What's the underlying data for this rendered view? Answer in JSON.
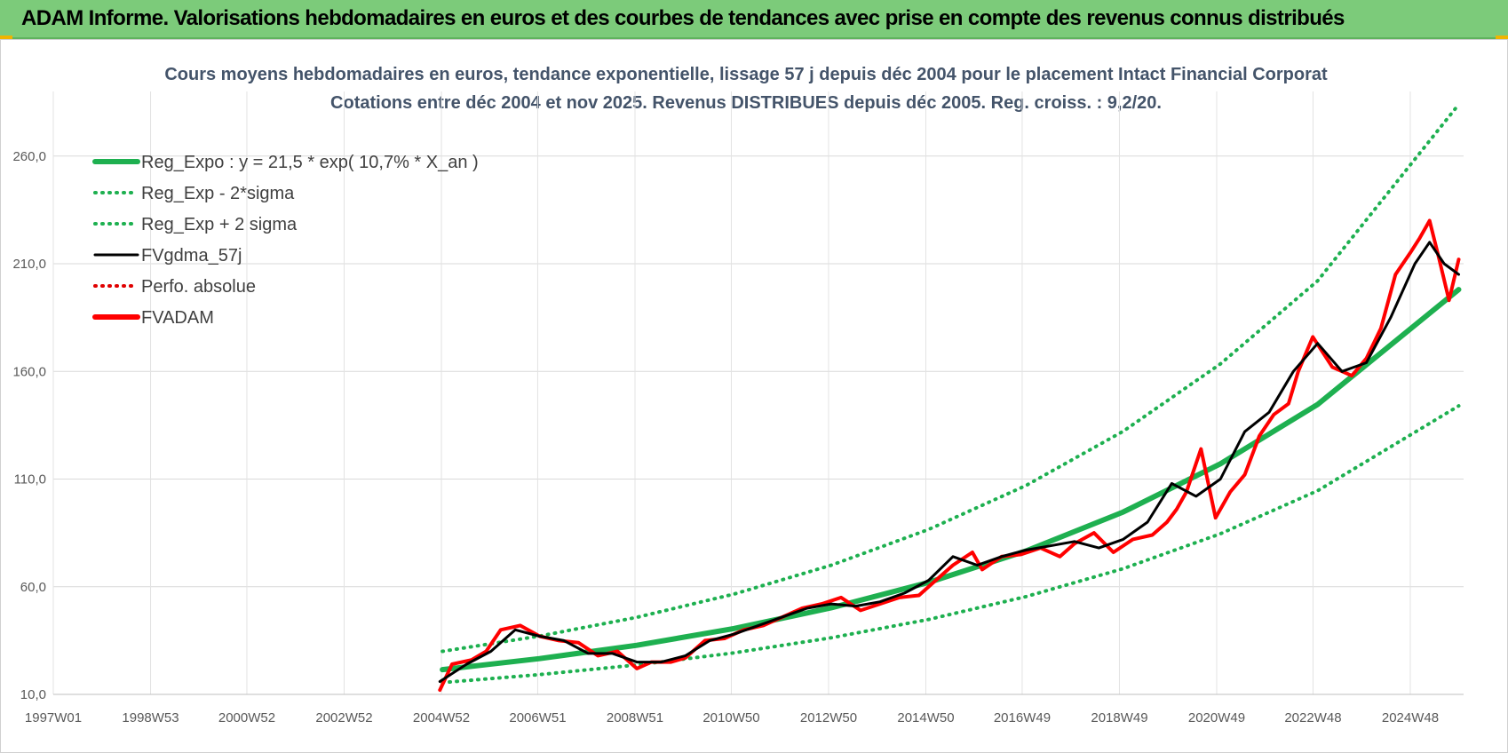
{
  "banner": {
    "title": "ADAM Informe. Valorisations hebdomadaires en euros et des courbes de tendances avec prise en compte des revenus connus distribués"
  },
  "colors": {
    "banner_bg": "#7ccb7a",
    "reg_green": "#1eb050",
    "sigma_green": "#1eb050",
    "smoothed": "#000000",
    "perfo": "#e00000",
    "fvadam": "#ff0000",
    "title_text": "#44546a"
  },
  "chart_data": {
    "type": "line",
    "title": "Cours moyens hebdomadaires en euros, tendance exponentielle, lissage 57 j depuis déc 2004 pour le placement Intact Financial Corporat",
    "subtitle": "Cotations entre déc 2004 et nov 2025. Revenus DISTRIBUES depuis déc 2005. Reg. croiss. : 9,2/20.",
    "x_tick_labels": [
      "1997W01",
      "1998W53",
      "2000W52",
      "2002W52",
      "2004W52",
      "2006W51",
      "2008W51",
      "2010W50",
      "2012W50",
      "2014W50",
      "2016W49",
      "2018W49",
      "2020W49",
      "2022W48",
      "2024W48"
    ],
    "y_tick_labels": [
      "10,0",
      "60,0",
      "110,0",
      "160,0",
      "210,0",
      "260,0"
    ],
    "x_range": [
      1997.0,
      2026.0
    ],
    "ylim": [
      10,
      290
    ],
    "grid": true,
    "legend_position": "top-left",
    "legend": [
      {
        "name": "Reg_Expo : y = 21,5 * exp( 10,7% *  X_an )",
        "style": "solid-thick",
        "color": "#1eb050"
      },
      {
        "name": "Reg_Exp - 2*sigma",
        "style": "dotted",
        "color": "#1eb050"
      },
      {
        "name": "Reg_Exp + 2 sigma",
        "style": "dotted",
        "color": "#1eb050"
      },
      {
        "name": "FVgdma_57j",
        "style": "solid",
        "color": "#000000"
      },
      {
        "name": "Perfo. absolue",
        "style": "dotted",
        "color": "#e00000"
      },
      {
        "name": "FVADAM",
        "style": "solid-thick",
        "color": "#ff0000"
      }
    ],
    "series": [
      {
        "name": "Reg_Expo : y = 21,5 * exp( 10,7% *  X_an )",
        "x": [
          2005.0,
          2007.0,
          2009.0,
          2011.0,
          2013.0,
          2015.0,
          2017.0,
          2019.0,
          2021.0,
          2023.0,
          2025.9
        ],
        "values": [
          21.5,
          26.6,
          32.8,
          40.6,
          50.2,
          62.0,
          76.6,
          94.7,
          117.1,
          144.7,
          198.0
        ]
      },
      {
        "name": "Reg_Exp - 2*sigma",
        "x": [
          2005.0,
          2007.0,
          2009.0,
          2011.0,
          2013.0,
          2015.0,
          2017.0,
          2019.0,
          2021.0,
          2023.0,
          2025.9
        ],
        "values": [
          15.5,
          19.2,
          23.7,
          29.3,
          36.3,
          44.8,
          55.4,
          68.4,
          84.6,
          104.6,
          144.0
        ]
      },
      {
        "name": "Reg_Exp + 2 sigma",
        "x": [
          2005.0,
          2007.0,
          2009.0,
          2011.0,
          2013.0,
          2015.0,
          2017.0,
          2019.0,
          2021.0,
          2023.0,
          2025.9
        ],
        "values": [
          30.0,
          37.1,
          45.8,
          56.6,
          70.0,
          86.6,
          107.0,
          132.2,
          163.5,
          202.1,
          284.0
        ]
      },
      {
        "name": "FVgdma_57j",
        "x": [
          2004.95,
          2005.5,
          2006.0,
          2006.5,
          2007.0,
          2007.5,
          2008.0,
          2008.5,
          2009.0,
          2009.5,
          2010.0,
          2010.5,
          2011.0,
          2011.5,
          2012.0,
          2012.5,
          2013.0,
          2013.5,
          2014.0,
          2014.5,
          2015.0,
          2015.5,
          2016.0,
          2016.5,
          2017.0,
          2017.5,
          2018.0,
          2018.5,
          2019.0,
          2019.5,
          2020.0,
          2020.5,
          2021.0,
          2021.5,
          2022.0,
          2022.5,
          2023.0,
          2023.5,
          2024.0,
          2024.5,
          2025.0,
          2025.3,
          2025.6,
          2025.9
        ],
        "values": [
          16.0,
          24.0,
          30.0,
          40.0,
          37.0,
          35.0,
          29.0,
          29.0,
          25.0,
          25.0,
          28.0,
          35.0,
          38.0,
          42.0,
          46.0,
          50.0,
          52.0,
          51.0,
          53.0,
          57.0,
          63.0,
          74.0,
          70.0,
          74.0,
          77.0,
          79.0,
          81.0,
          78.0,
          82.0,
          90.0,
          108.0,
          102.0,
          110.0,
          132.0,
          141.0,
          160.0,
          173.0,
          160.0,
          164.0,
          185.0,
          210.0,
          220.0,
          210.0,
          205.0
        ]
      },
      {
        "name": "FVADAM",
        "x": [
          2004.95,
          2005.2,
          2005.6,
          2005.9,
          2006.2,
          2006.6,
          2007.0,
          2007.4,
          2007.8,
          2008.2,
          2008.6,
          2009.0,
          2009.3,
          2009.7,
          2010.0,
          2010.4,
          2010.8,
          2011.2,
          2011.6,
          2012.0,
          2012.4,
          2012.8,
          2013.2,
          2013.6,
          2014.0,
          2014.4,
          2014.8,
          2015.1,
          2015.5,
          2015.9,
          2016.1,
          2016.5,
          2016.9,
          2017.3,
          2017.7,
          2018.0,
          2018.4,
          2018.8,
          2019.2,
          2019.6,
          2019.9,
          2020.1,
          2020.3,
          2020.6,
          2020.9,
          2021.2,
          2021.5,
          2021.8,
          2022.1,
          2022.4,
          2022.6,
          2022.9,
          2023.3,
          2023.7,
          2024.0,
          2024.3,
          2024.6,
          2024.9,
          2025.1,
          2025.3,
          2025.5,
          2025.7,
          2025.9
        ],
        "values": [
          12.0,
          24.0,
          26.0,
          30.0,
          40.0,
          42.0,
          37.0,
          35.0,
          34.0,
          28.0,
          30.0,
          22.0,
          25.0,
          25.0,
          27.0,
          35.0,
          36.0,
          40.0,
          42.0,
          46.0,
          50.0,
          52.0,
          55.0,
          49.0,
          52.0,
          55.0,
          56.0,
          62.0,
          70.0,
          76.0,
          68.0,
          74.0,
          75.0,
          78.0,
          74.0,
          80.0,
          85.0,
          76.0,
          82.0,
          84.0,
          90.0,
          96.0,
          104.0,
          124.0,
          92.0,
          104.0,
          112.0,
          130.0,
          140.0,
          145.0,
          160.0,
          176.0,
          162.0,
          158.0,
          166.0,
          180.0,
          205.0,
          215.0,
          222.0,
          230.0,
          212.0,
          193.0,
          212.0
        ]
      }
    ]
  }
}
